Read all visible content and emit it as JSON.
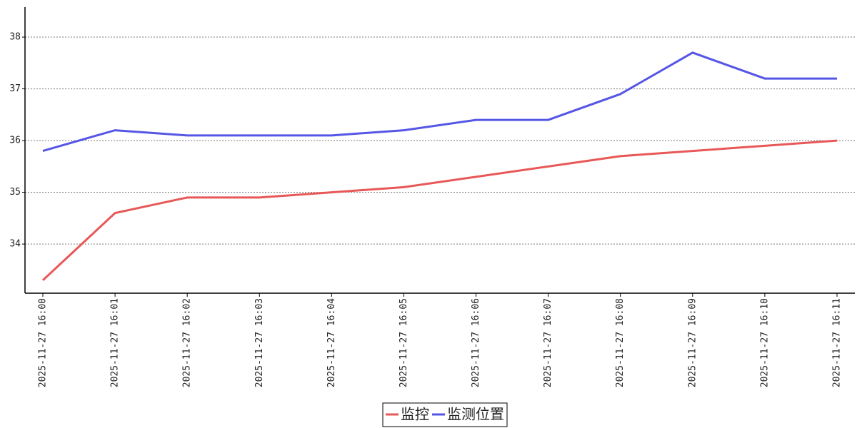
{
  "chart_data": {
    "type": "line",
    "categories": [
      "2025-11-27 16:00",
      "2025-11-27 16:01",
      "2025-11-27 16:02",
      "2025-11-27 16:03",
      "2025-11-27 16:04",
      "2025-11-27 16:05",
      "2025-11-27 16:06",
      "2025-11-27 16:07",
      "2025-11-27 16:08",
      "2025-11-27 16:09",
      "2025-11-27 16:10",
      "2025-11-27 16:11"
    ],
    "series": [
      {
        "name": "监控",
        "color": "#e85858",
        "values": [
          33.3,
          34.6,
          34.9,
          34.9,
          35.0,
          35.1,
          35.3,
          35.5,
          35.7,
          35.8,
          35.9,
          36.0
        ]
      },
      {
        "name": "监测位置",
        "color": "#5656e6",
        "values": [
          35.8,
          36.2,
          36.1,
          36.1,
          36.1,
          36.2,
          36.4,
          36.4,
          36.9,
          37.7,
          37.2,
          37.2
        ]
      }
    ],
    "ylim": [
      33.05,
      38.58
    ],
    "yticks": [
      34,
      35,
      36,
      37,
      38
    ],
    "grid": true,
    "legend": "bottom"
  }
}
